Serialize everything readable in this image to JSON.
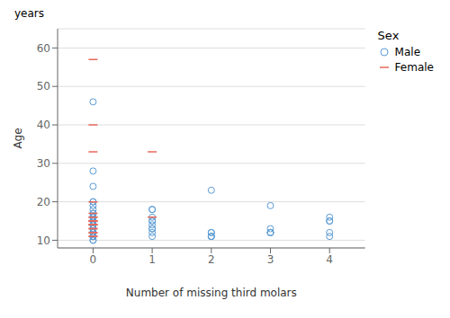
{
  "chart_data": {
    "type": "scatter",
    "xlabel": "Number of missing third molars",
    "ylabel": "Age",
    "annotations": [
      "years"
    ],
    "legend_title": "Sex",
    "legend": "right",
    "grid": "y",
    "xlim": [
      -0.6,
      4.6
    ],
    "xticks": [
      0,
      1,
      2,
      3,
      4
    ],
    "ylim": [
      8,
      65
    ],
    "yticks": [
      10,
      20,
      30,
      40,
      50,
      60
    ],
    "series": [
      {
        "name": "Male",
        "color": "#5B9BD5",
        "marker": "circle",
        "x": [
          0,
          0,
          0,
          0,
          0,
          0,
          0,
          0,
          0,
          0,
          0,
          0,
          0,
          0,
          0,
          0,
          0,
          0,
          0,
          0,
          0,
          0,
          0,
          0,
          0,
          0,
          0,
          0,
          0,
          0,
          0,
          1,
          1,
          1,
          1,
          1,
          1,
          1,
          1,
          1,
          1,
          2,
          2,
          2,
          2,
          2,
          2,
          3,
          3,
          3,
          3,
          3,
          4,
          4,
          4,
          4,
          4
        ],
        "values": [
          46,
          28,
          24,
          20,
          20,
          19,
          18,
          17,
          17,
          16,
          16,
          16,
          16,
          15,
          15,
          15,
          15,
          14,
          14,
          14,
          13,
          13,
          12,
          12,
          12,
          11,
          11,
          11,
          11,
          10,
          10,
          18,
          18,
          16,
          15,
          15,
          14,
          13,
          13,
          12,
          11,
          23,
          12,
          12,
          11,
          11,
          11,
          19,
          13,
          12,
          12,
          12,
          16,
          15,
          15,
          12,
          11
        ]
      },
      {
        "name": "Female",
        "color": "#E8685A",
        "marker": "dash",
        "x": [
          0,
          0,
          0,
          0,
          0,
          0,
          0,
          0,
          0,
          0,
          0,
          0,
          0,
          0,
          0,
          0,
          0,
          0,
          0,
          0,
          0,
          1,
          1
        ],
        "values": [
          57,
          40,
          33,
          20,
          17,
          16,
          16,
          15,
          15,
          15,
          15,
          14,
          14,
          14,
          14,
          13,
          13,
          12,
          12,
          11,
          11,
          33,
          16
        ]
      }
    ]
  }
}
